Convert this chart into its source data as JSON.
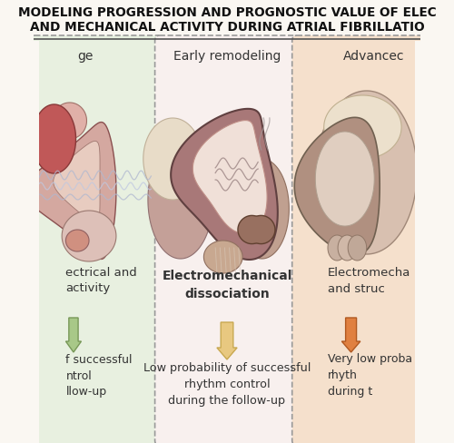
{
  "title_line1": "MODELING PROGRESSION AND PROGNOSTIC VALUE OF ELEC",
  "title_line2": "AND MECHANICAL ACTIVITY DURING ATRIAL FIBRILLATIO",
  "panel_bg_colors": [
    "#e8f0e0",
    "#f8f0ee",
    "#f5e0cc"
  ],
  "panel_border_color": "#999999",
  "panel1_title": "ge",
  "panel1_sublabel": "ectrical and\nactivity",
  "panel1_bottom": "f successful\nntrol\nllow-up",
  "panel2_title": "Early remodeling",
  "panel2_sublabel": "Electromechanical\ndissociation",
  "panel2_bottom": "Low probability of successful\nrhythm control\nduring the follow-up",
  "panel3_title": "Advancec",
  "panel3_sublabel": "Electromecha\nand struc",
  "panel3_bottom": "Very low proba\nrhyth\nduring t",
  "bg_color": "#faf7f2",
  "title_color": "#111111",
  "text_color": "#333333",
  "arrow1_fc": "#a8c888",
  "arrow1_ec": "#789858",
  "arrow2_fc": "#e8c880",
  "arrow2_ec": "#c8a850",
  "arrow3_fc": "#e08040",
  "arrow3_ec": "#b05820"
}
